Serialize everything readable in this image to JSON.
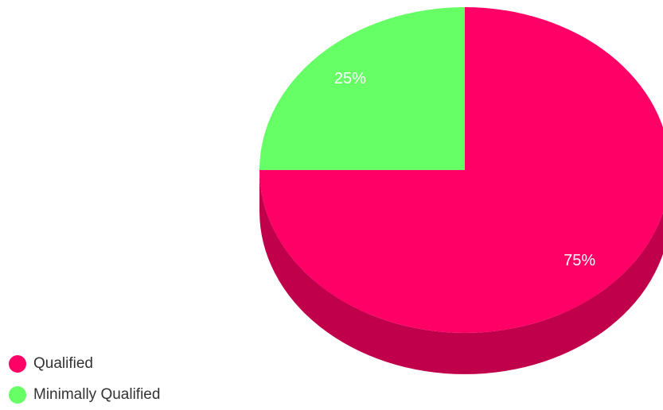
{
  "chart_data": {
    "type": "pie",
    "categories": [
      "Qualified",
      "Minimally Qualified"
    ],
    "values": [
      75,
      25
    ],
    "value_labels": [
      "75%",
      "25%"
    ],
    "colors": [
      "#ff0066",
      "#66ff66"
    ],
    "side_colors": [
      "#c0004a",
      "#4cc04c"
    ],
    "legend": "bottom-left"
  }
}
